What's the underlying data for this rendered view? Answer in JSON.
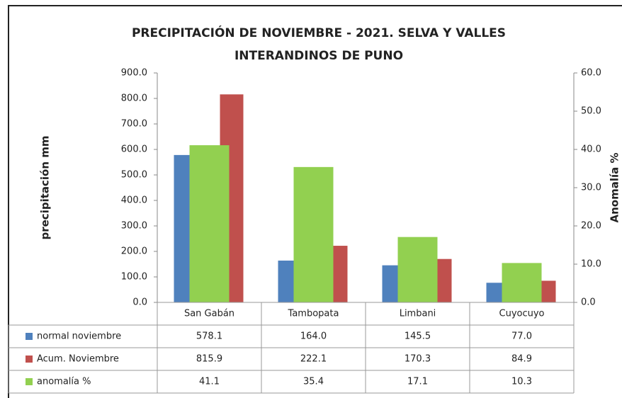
{
  "chart_data": {
    "type": "bar",
    "title": [
      "PRECIPITACIÓN DE NOVIEMBRE - 2021. SELVA Y VALLES",
      "INTERANDINOS DE PUNO"
    ],
    "y_label": "precipitación mm",
    "y2_label": "Anomalía %",
    "categories": [
      "San Gabán",
      "Tambopata",
      "Limbani",
      "Cuyocuyo"
    ],
    "series": [
      {
        "name": "normal noviembre",
        "color": "#4f81bd",
        "values": [
          578.1,
          164.0,
          145.5,
          77.0
        ],
        "value_labels": [
          "578.1",
          "164.0",
          "145.5",
          "77.0"
        ]
      },
      {
        "name": "Acum. Noviembre",
        "color": "#c0504d",
        "values": [
          815.9,
          222.1,
          170.3,
          84.9
        ],
        "value_labels": [
          "815.9",
          "222.1",
          "170.3",
          "84.9"
        ]
      },
      {
        "name": "anomalía %",
        "color": "#92d050",
        "axis": "y2",
        "values": [
          41.1,
          35.4,
          17.1,
          10.3
        ],
        "value_labels": [
          "41.1",
          "35.4",
          "17.1",
          "10.3"
        ]
      }
    ],
    "ylim": [
      0,
      900
    ],
    "yticks": [
      {
        "value": 0,
        "label": "0.0"
      },
      {
        "value": 100,
        "label": "100.0"
      },
      {
        "value": 200,
        "label": "200.0"
      },
      {
        "value": 300,
        "label": "300.0"
      },
      {
        "value": 400,
        "label": "400.0"
      },
      {
        "value": 500,
        "label": "500.0"
      },
      {
        "value": 600,
        "label": "600.0"
      },
      {
        "value": 700,
        "label": "700.0"
      },
      {
        "value": 800,
        "label": "800.0"
      },
      {
        "value": 900,
        "label": "900.0"
      }
    ],
    "y2lim": [
      0,
      60
    ],
    "y2ticks": [
      {
        "value": 0,
        "label": "0.0"
      },
      {
        "value": 10,
        "label": "10.0"
      },
      {
        "value": 20,
        "label": "20.0"
      },
      {
        "value": 30,
        "label": "30.0"
      },
      {
        "value": 40,
        "label": "40.0"
      },
      {
        "value": 50,
        "label": "50.0"
      },
      {
        "value": 60,
        "label": "60.0"
      }
    ],
    "grid": false
  }
}
